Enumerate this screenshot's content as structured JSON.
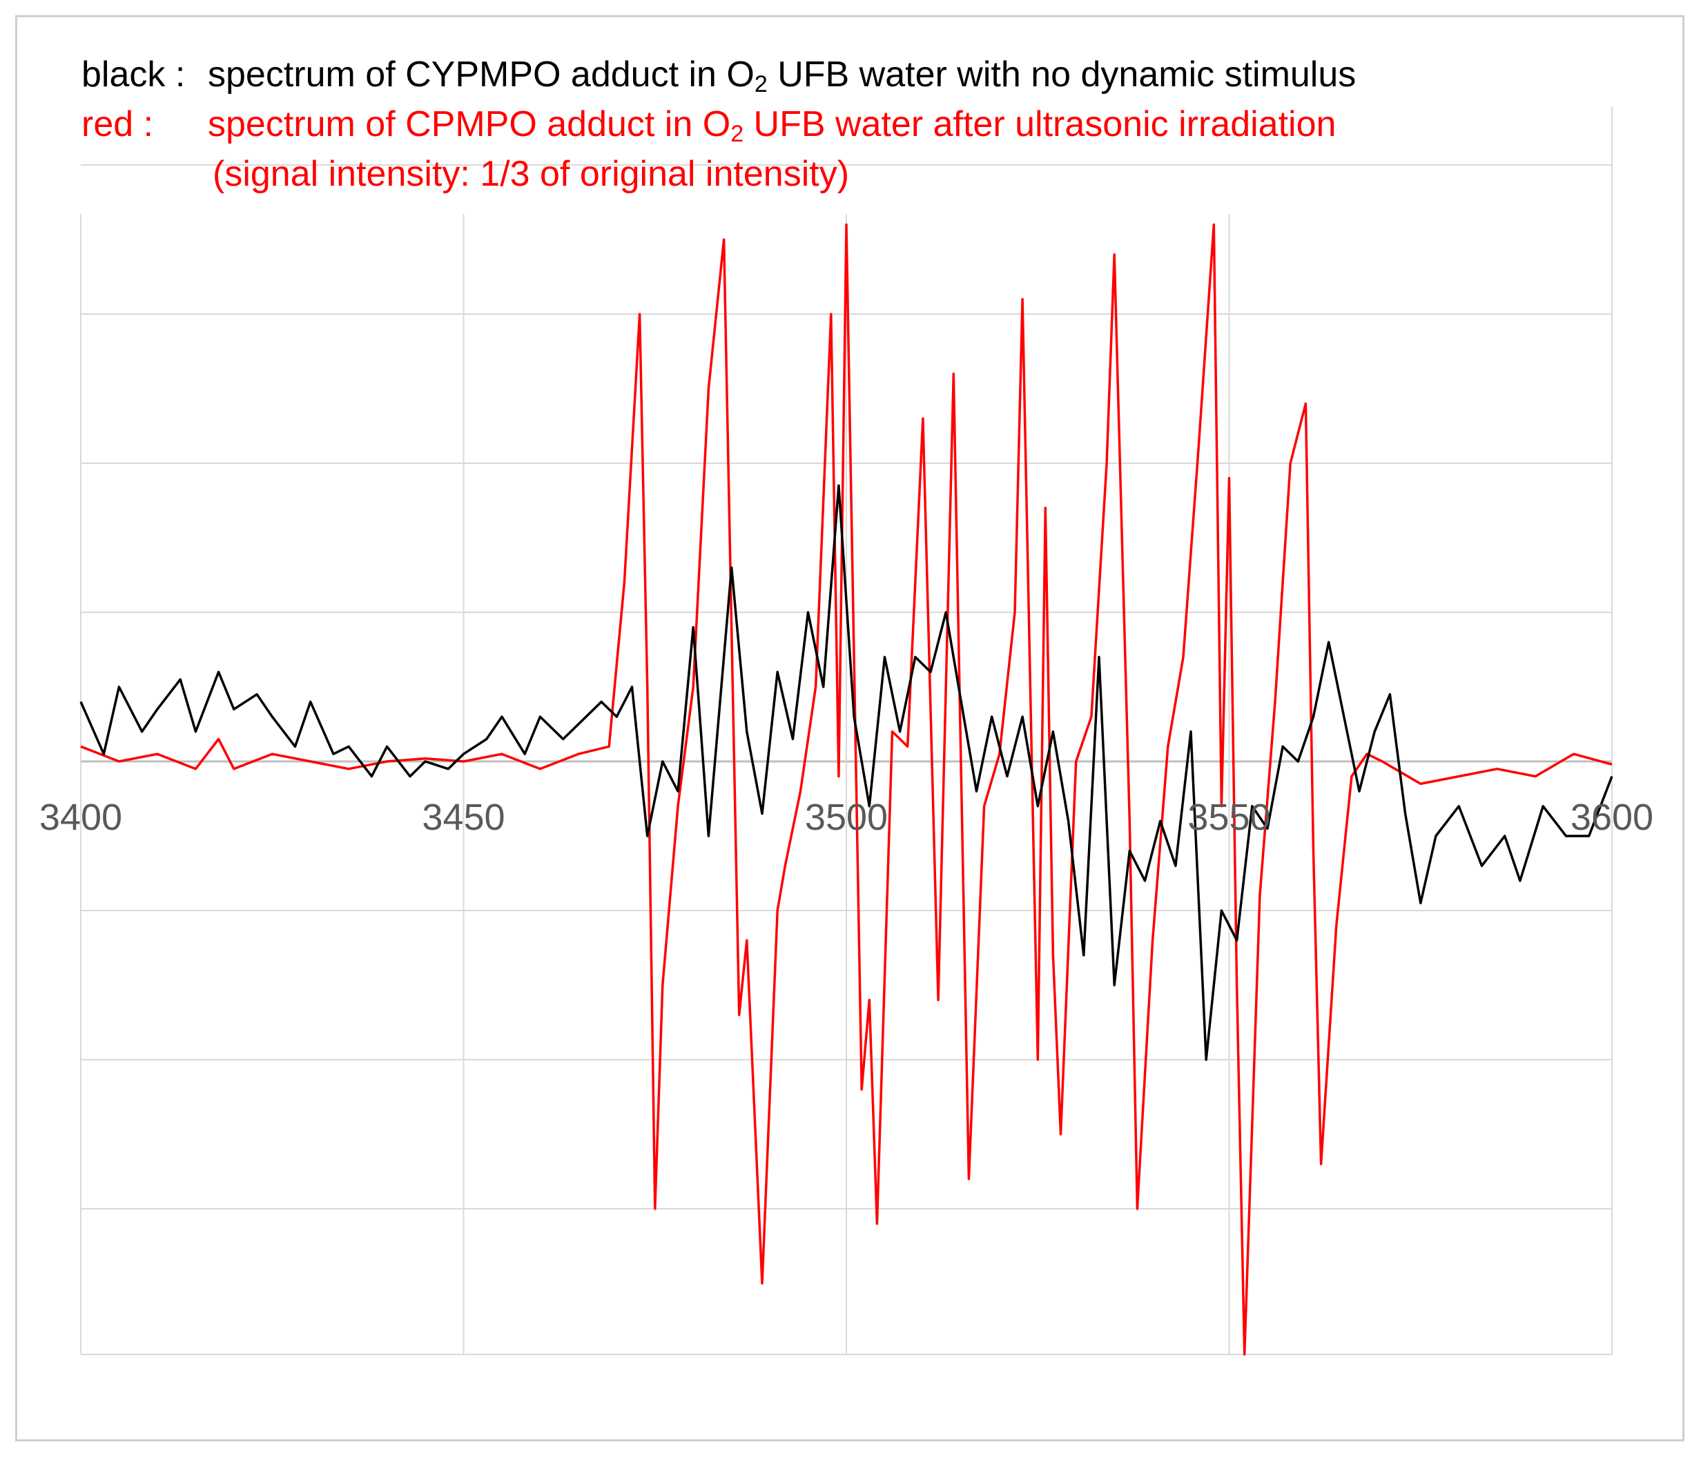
{
  "legend": {
    "black_key": "black :",
    "black_text_before": "spectrum of CYPMPO adduct in O",
    "black_sub": "2",
    "black_text_after": " UFB water with no dynamic stimulus",
    "red_key": "red :",
    "red_text_before": "spectrum of CPMPO adduct in O",
    "red_sub": "2",
    "red_text_after": " UFB water after ultrasonic irradiation",
    "red_note": "(signal intensity: 1/3 of original intensity)"
  },
  "colors": {
    "black_series": "#000000",
    "red_series": "#ff0000",
    "grid": "#d9d9d9",
    "axis_label": "#595959"
  },
  "chart_data": {
    "type": "line",
    "title": "",
    "xlabel": "",
    "ylabel": "",
    "xlim": [
      3400,
      3600
    ],
    "ylim": [
      -4,
      4
    ],
    "grid": true,
    "x_ticks": [
      "3400",
      "3450",
      "3500",
      "3550",
      "3600"
    ],
    "x_tick_values": [
      3400,
      3450,
      3500,
      3550,
      3600
    ],
    "y_gridlines": [
      -4,
      -3,
      -2,
      -1,
      0,
      1,
      2,
      3,
      4
    ],
    "series": [
      {
        "color": "black",
        "points": [
          [
            3400,
            0.4
          ],
          [
            3403,
            0.05
          ],
          [
            3405,
            0.5
          ],
          [
            3408,
            0.2
          ],
          [
            3410,
            0.35
          ],
          [
            3413,
            0.55
          ],
          [
            3415,
            0.2
          ],
          [
            3418,
            0.6
          ],
          [
            3420,
            0.35
          ],
          [
            3423,
            0.45
          ],
          [
            3425,
            0.3
          ],
          [
            3428,
            0.1
          ],
          [
            3430,
            0.4
          ],
          [
            3433,
            0.05
          ],
          [
            3435,
            0.1
          ],
          [
            3438,
            -0.1
          ],
          [
            3440,
            0.1
          ],
          [
            3443,
            -0.1
          ],
          [
            3445,
            0.0
          ],
          [
            3448,
            -0.05
          ],
          [
            3450,
            0.05
          ],
          [
            3453,
            0.15
          ],
          [
            3455,
            0.3
          ],
          [
            3458,
            0.05
          ],
          [
            3460,
            0.3
          ],
          [
            3463,
            0.15
          ],
          [
            3465,
            0.25
          ],
          [
            3468,
            0.4
          ],
          [
            3470,
            0.3
          ],
          [
            3472,
            0.5
          ],
          [
            3474,
            -0.5
          ],
          [
            3476,
            0.0
          ],
          [
            3478,
            -0.2
          ],
          [
            3480,
            0.9
          ],
          [
            3482,
            -0.5
          ],
          [
            3485,
            1.3
          ],
          [
            3487,
            0.2
          ],
          [
            3489,
            -0.35
          ],
          [
            3491,
            0.6
          ],
          [
            3493,
            0.15
          ],
          [
            3495,
            1.0
          ],
          [
            3497,
            0.5
          ],
          [
            3499,
            1.85
          ],
          [
            3501,
            0.3
          ],
          [
            3503,
            -0.3
          ],
          [
            3505,
            0.7
          ],
          [
            3507,
            0.2
          ],
          [
            3509,
            0.7
          ],
          [
            3511,
            0.6
          ],
          [
            3513,
            1.0
          ],
          [
            3515,
            0.4
          ],
          [
            3517,
            -0.2
          ],
          [
            3519,
            0.3
          ],
          [
            3521,
            -0.1
          ],
          [
            3523,
            0.3
          ],
          [
            3525,
            -0.3
          ],
          [
            3527,
            0.2
          ],
          [
            3529,
            -0.4
          ],
          [
            3531,
            -1.3
          ],
          [
            3533,
            0.7
          ],
          [
            3535,
            -1.5
          ],
          [
            3537,
            -0.6
          ],
          [
            3539,
            -0.8
          ],
          [
            3541,
            -0.4
          ],
          [
            3543,
            -0.7
          ],
          [
            3545,
            0.2
          ],
          [
            3547,
            -2.0
          ],
          [
            3549,
            -1.0
          ],
          [
            3551,
            -1.2
          ],
          [
            3553,
            -0.3
          ],
          [
            3555,
            -0.45
          ],
          [
            3557,
            0.1
          ],
          [
            3559,
            0.0
          ],
          [
            3561,
            0.3
          ],
          [
            3563,
            0.8
          ],
          [
            3565,
            0.3
          ],
          [
            3567,
            -0.2
          ],
          [
            3569,
            0.2
          ],
          [
            3571,
            0.45
          ],
          [
            3573,
            -0.35
          ],
          [
            3575,
            -0.95
          ],
          [
            3577,
            -0.5
          ],
          [
            3580,
            -0.3
          ],
          [
            3583,
            -0.7
          ],
          [
            3586,
            -0.5
          ],
          [
            3588,
            -0.8
          ],
          [
            3591,
            -0.3
          ],
          [
            3594,
            -0.5
          ],
          [
            3597,
            -0.5
          ],
          [
            3600,
            -0.1
          ]
        ]
      },
      {
        "color": "red",
        "points": [
          [
            3400,
            0.1
          ],
          [
            3405,
            0.0
          ],
          [
            3410,
            0.05
          ],
          [
            3415,
            -0.05
          ],
          [
            3418,
            0.15
          ],
          [
            3420,
            -0.05
          ],
          [
            3425,
            0.05
          ],
          [
            3430,
            0.0
          ],
          [
            3435,
            -0.05
          ],
          [
            3440,
            0.0
          ],
          [
            3445,
            0.02
          ],
          [
            3450,
            0.0
          ],
          [
            3455,
            0.05
          ],
          [
            3460,
            -0.05
          ],
          [
            3465,
            0.05
          ],
          [
            3469,
            0.1
          ],
          [
            3471,
            1.2
          ],
          [
            3473,
            3.0
          ],
          [
            3474,
            0.5
          ],
          [
            3475,
            -3.0
          ],
          [
            3476,
            -1.5
          ],
          [
            3478,
            -0.3
          ],
          [
            3480,
            0.5
          ],
          [
            3482,
            2.5
          ],
          [
            3484,
            3.5
          ],
          [
            3486,
            -1.7
          ],
          [
            3487,
            -1.2
          ],
          [
            3489,
            -3.5
          ],
          [
            3491,
            -1.0
          ],
          [
            3492,
            -0.7
          ],
          [
            3494,
            -0.2
          ],
          [
            3496,
            0.5
          ],
          [
            3498,
            3.0
          ],
          [
            3499,
            -0.1
          ],
          [
            3500,
            3.6
          ],
          [
            3502,
            -2.2
          ],
          [
            3503,
            -1.6
          ],
          [
            3504,
            -3.1
          ],
          [
            3506,
            0.2
          ],
          [
            3508,
            0.1
          ],
          [
            3510,
            2.3
          ],
          [
            3512,
            -1.6
          ],
          [
            3514,
            2.6
          ],
          [
            3516,
            -2.8
          ],
          [
            3518,
            -0.3
          ],
          [
            3520,
            0.05
          ],
          [
            3522,
            1.0
          ],
          [
            3523,
            3.1
          ],
          [
            3525,
            -2.0
          ],
          [
            3526,
            1.7
          ],
          [
            3527,
            -1.3
          ],
          [
            3528,
            -2.5
          ],
          [
            3530,
            0.0
          ],
          [
            3532,
            0.3
          ],
          [
            3534,
            2.0
          ],
          [
            3535,
            3.4
          ],
          [
            3537,
            -0.4
          ],
          [
            3538,
            -3.0
          ],
          [
            3540,
            -1.2
          ],
          [
            3542,
            0.1
          ],
          [
            3544,
            0.7
          ],
          [
            3546,
            2.1
          ],
          [
            3548,
            3.6
          ],
          [
            3549,
            -0.3
          ],
          [
            3550,
            1.9
          ],
          [
            3551,
            -1.5
          ],
          [
            3552,
            -4.0
          ],
          [
            3554,
            -0.9
          ],
          [
            3556,
            0.4
          ],
          [
            3558,
            2.0
          ],
          [
            3560,
            2.4
          ],
          [
            3561,
            -0.6
          ],
          [
            3562,
            -2.7
          ],
          [
            3564,
            -1.1
          ],
          [
            3566,
            -0.1
          ],
          [
            3568,
            0.05
          ],
          [
            3570,
            0.0
          ],
          [
            3575,
            -0.15
          ],
          [
            3580,
            -0.1
          ],
          [
            3585,
            -0.05
          ],
          [
            3590,
            -0.1
          ],
          [
            3595,
            0.05
          ],
          [
            3600,
            -0.02
          ]
        ]
      }
    ]
  }
}
